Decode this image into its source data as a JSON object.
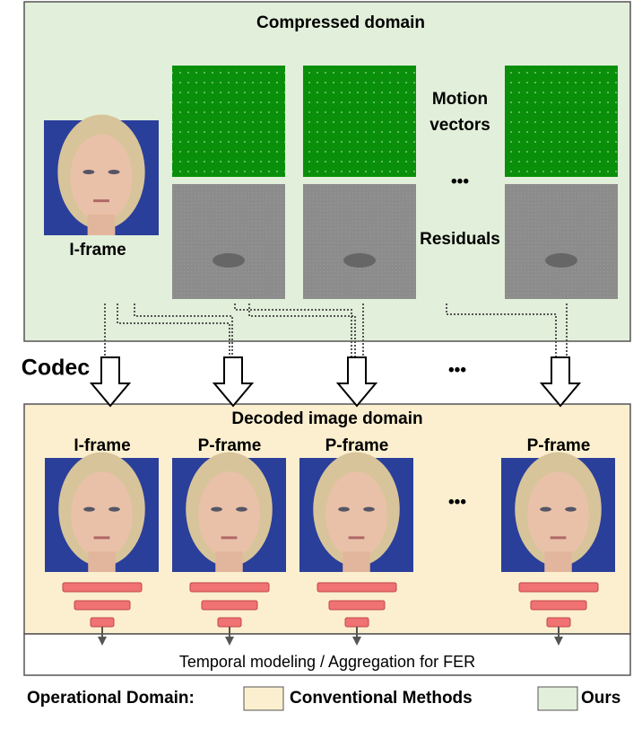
{
  "compressed_domain": {
    "title": "Compressed domain",
    "iframe_label": "I-frame",
    "motion_label_lines": [
      "Motion",
      "vectors"
    ],
    "residuals_label": "Residuals",
    "ellipsis": "•••"
  },
  "codec_label": "Codec",
  "codec_ellipsis": "•••",
  "decoded_domain": {
    "title": "Decoded image domain",
    "frame_labels": [
      "I-frame",
      "P-frame",
      "P-frame",
      "P-frame"
    ],
    "ellipsis": "•••"
  },
  "aggregation_label": "Temporal modeling / Aggregation for FER",
  "legend": {
    "title": "Operational Domain:",
    "items": [
      "Conventional Methods",
      "Ours"
    ]
  }
}
